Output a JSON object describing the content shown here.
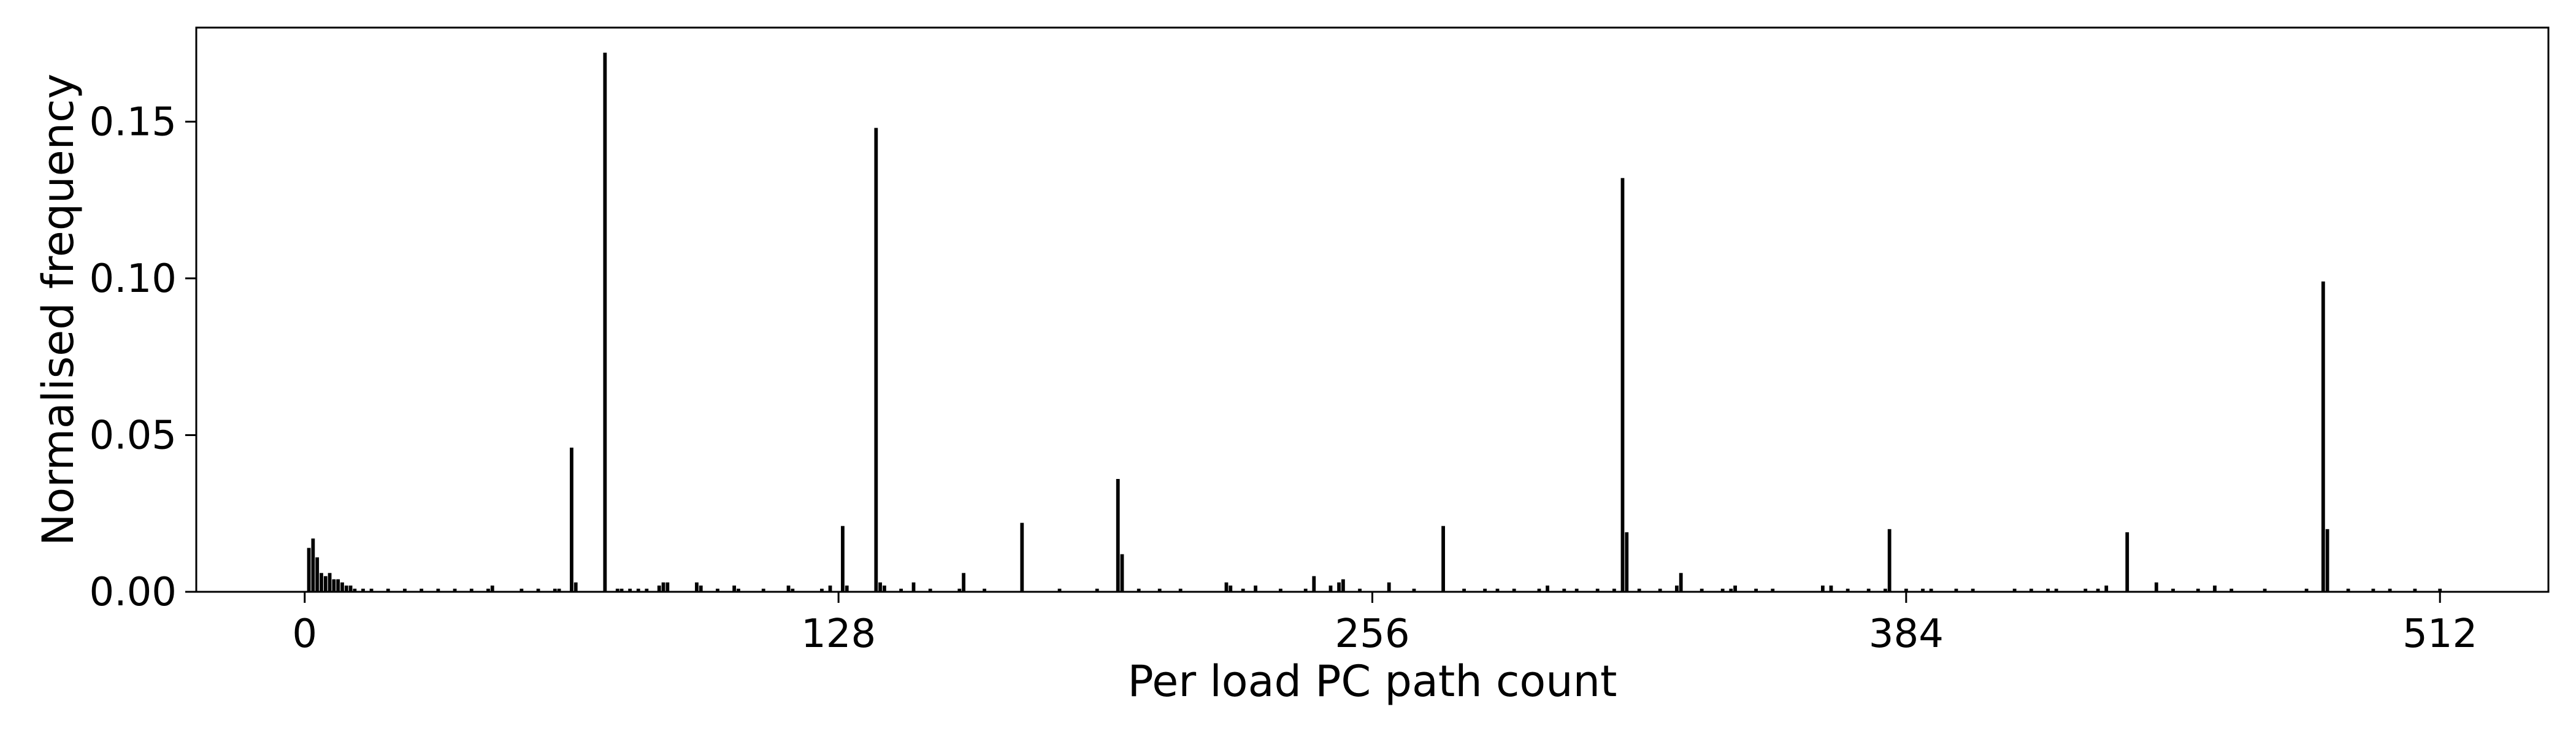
{
  "chart_data": {
    "type": "bar",
    "title": "",
    "xlabel": "Per load PC path count",
    "ylabel": "Normalised frequency",
    "xlim": [
      -26,
      538
    ],
    "ylim": [
      0,
      0.18
    ],
    "xticks": [
      0,
      128,
      256,
      384,
      512
    ],
    "xtick_labels": [
      "0",
      "128",
      "256",
      "384",
      "512"
    ],
    "yticks": [
      0,
      0.05,
      0.1,
      0.15
    ],
    "ytick_labels": [
      "0.00",
      "0.05",
      "0.10",
      "0.15"
    ],
    "grid": false,
    "bar_color": "#000000",
    "series": [
      {
        "x": [
          1,
          2,
          3,
          4,
          5,
          6,
          7,
          8,
          9,
          10,
          11,
          12,
          14,
          16,
          20,
          24,
          28,
          32,
          36,
          40,
          44,
          45,
          52,
          56,
          60,
          61,
          64,
          65,
          72,
          75,
          76,
          78,
          80,
          82,
          85,
          86,
          87,
          94,
          95,
          99,
          103,
          104,
          110,
          116,
          117,
          124,
          126,
          129,
          130,
          137,
          138,
          139,
          143,
          146,
          150,
          157,
          158,
          163,
          172,
          181,
          190,
          195,
          196,
          200,
          205,
          210,
          221,
          222,
          225,
          228,
          234,
          240,
          242,
          246,
          248,
          249,
          253,
          260,
          266,
          273,
          278,
          283,
          286,
          290,
          296,
          298,
          302,
          305,
          310,
          314,
          316,
          317,
          320,
          325,
          329,
          330,
          335,
          340,
          342,
          343,
          348,
          352,
          364,
          366,
          370,
          375,
          379,
          380,
          384,
          388,
          390,
          396,
          400,
          410,
          414,
          418,
          420,
          427,
          430,
          432,
          437,
          444,
          448,
          454,
          458,
          462,
          470,
          480,
          484,
          485,
          490,
          496,
          500,
          506,
          512
        ],
        "values": [
          0.014,
          0.017,
          0.011,
          0.006,
          0.005,
          0.006,
          0.004,
          0.004,
          0.003,
          0.002,
          0.002,
          0.001,
          0.001,
          0.001,
          0.001,
          0.001,
          0.001,
          0.001,
          0.001,
          0.001,
          0.001,
          0.002,
          0.001,
          0.001,
          0.001,
          0.001,
          0.046,
          0.003,
          0.172,
          0.001,
          0.001,
          0.001,
          0.001,
          0.001,
          0.002,
          0.003,
          0.003,
          0.003,
          0.002,
          0.001,
          0.002,
          0.001,
          0.001,
          0.002,
          0.001,
          0.001,
          0.002,
          0.021,
          0.002,
          0.148,
          0.003,
          0.002,
          0.001,
          0.003,
          0.001,
          0.001,
          0.006,
          0.001,
          0.022,
          0.001,
          0.001,
          0.036,
          0.012,
          0.001,
          0.001,
          0.001,
          0.003,
          0.002,
          0.001,
          0.002,
          0.001,
          0.001,
          0.005,
          0.002,
          0.003,
          0.004,
          0.001,
          0.003,
          0.001,
          0.021,
          0.001,
          0.001,
          0.001,
          0.001,
          0.001,
          0.002,
          0.001,
          0.001,
          0.001,
          0.001,
          0.132,
          0.019,
          0.001,
          0.001,
          0.002,
          0.006,
          0.001,
          0.001,
          0.001,
          0.002,
          0.001,
          0.001,
          0.002,
          0.002,
          0.001,
          0.001,
          0.001,
          0.02,
          0.001,
          0.001,
          0.001,
          0.001,
          0.001,
          0.001,
          0.001,
          0.001,
          0.001,
          0.001,
          0.001,
          0.002,
          0.019,
          0.003,
          0.001,
          0.001,
          0.002,
          0.001,
          0.001,
          0.001,
          0.099,
          0.02,
          0.001,
          0.001,
          0.001,
          0.001,
          0.001
        ]
      }
    ]
  }
}
